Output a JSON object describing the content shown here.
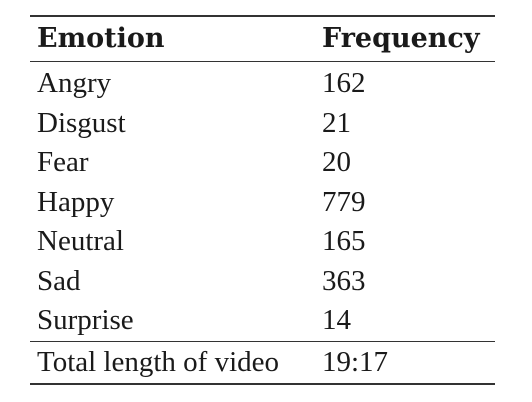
{
  "table": {
    "headers": [
      "Emotion",
      "Frequency"
    ],
    "rows": [
      {
        "emotion": "Angry",
        "frequency": "162"
      },
      {
        "emotion": "Disgust",
        "frequency": "21"
      },
      {
        "emotion": "Fear",
        "frequency": "20"
      },
      {
        "emotion": "Happy",
        "frequency": "779"
      },
      {
        "emotion": "Neutral",
        "frequency": "165"
      },
      {
        "emotion": "Sad",
        "frequency": "363"
      },
      {
        "emotion": "Surprise",
        "frequency": "14"
      }
    ],
    "total": {
      "label": "Total length of video",
      "value": "19:17"
    }
  }
}
